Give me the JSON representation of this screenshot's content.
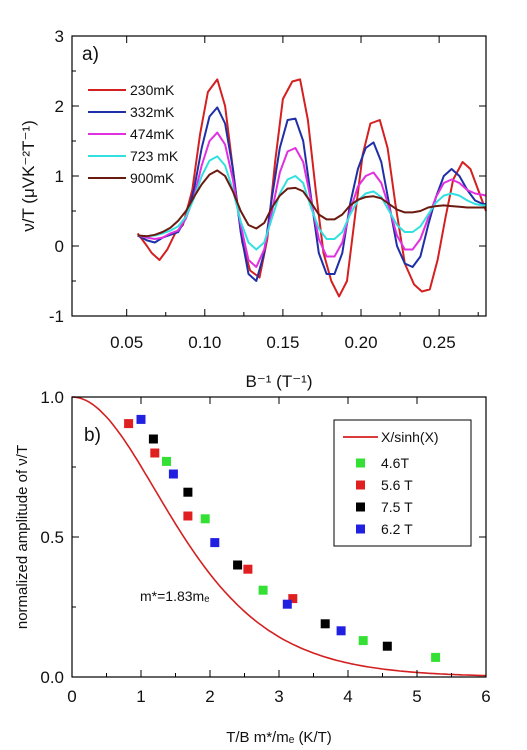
{
  "chart_data": [
    {
      "type": "line",
      "panel_label": "a)",
      "xlabel": "B⁻¹ (T⁻¹)",
      "ylabel": "ν/T (μVK⁻²T⁻¹)",
      "xlim": [
        0.015,
        0.28
      ],
      "ylim": [
        -1,
        3
      ],
      "xticks": [
        "0.05",
        "0.10",
        "0.15",
        "0.20",
        "0.25"
      ],
      "yticks": [
        "-1",
        "0",
        "1",
        "2",
        "3"
      ],
      "legend_position": "top-left",
      "series": [
        {
          "name": "230mK",
          "color": "#d42020",
          "x": [
            0.057,
            0.063,
            0.066,
            0.071,
            0.076,
            0.081,
            0.086,
            0.092,
            0.097,
            0.102,
            0.108,
            0.113,
            0.118,
            0.124,
            0.129,
            0.135,
            0.14,
            0.145,
            0.15,
            0.156,
            0.161,
            0.166,
            0.171,
            0.176,
            0.181,
            0.186,
            0.191,
            0.196,
            0.201,
            0.206,
            0.212,
            0.217,
            0.222,
            0.228,
            0.234,
            0.239,
            0.244,
            0.249,
            0.254,
            0.259,
            0.265,
            0.27,
            0.275,
            0.28
          ],
          "y": [
            0.18,
            0.0,
            -0.1,
            -0.2,
            -0.05,
            0.18,
            0.3,
            0.8,
            1.6,
            2.2,
            2.38,
            2.0,
            1.1,
            0.05,
            -0.35,
            -0.45,
            0.1,
            1.2,
            2.1,
            2.35,
            2.38,
            1.8,
            0.8,
            -0.1,
            -0.5,
            -0.72,
            -0.5,
            0.4,
            1.3,
            1.75,
            1.8,
            1.4,
            0.6,
            -0.25,
            -0.55,
            -0.65,
            -0.62,
            -0.2,
            0.4,
            0.95,
            1.2,
            1.1,
            0.8,
            0.5
          ]
        },
        {
          "name": "332mK",
          "color": "#1f2fa8",
          "x": [
            0.057,
            0.063,
            0.068,
            0.073,
            0.078,
            0.083,
            0.088,
            0.093,
            0.098,
            0.103,
            0.108,
            0.113,
            0.118,
            0.123,
            0.128,
            0.133,
            0.138,
            0.143,
            0.148,
            0.153,
            0.158,
            0.163,
            0.168,
            0.173,
            0.178,
            0.183,
            0.188,
            0.193,
            0.198,
            0.203,
            0.208,
            0.213,
            0.218,
            0.223,
            0.228,
            0.233,
            0.238,
            0.243,
            0.248,
            0.253,
            0.258,
            0.263,
            0.268,
            0.273,
            0.278,
            0.28
          ],
          "y": [
            0.15,
            0.08,
            0.05,
            0.12,
            0.16,
            0.2,
            0.4,
            0.8,
            1.4,
            1.85,
            1.98,
            1.75,
            1.1,
            0.2,
            -0.4,
            -0.5,
            -0.1,
            0.7,
            1.4,
            1.8,
            1.82,
            1.5,
            0.7,
            -0.1,
            -0.4,
            -0.4,
            -0.1,
            0.6,
            1.1,
            1.4,
            1.48,
            1.2,
            0.6,
            0.0,
            -0.25,
            -0.3,
            -0.15,
            0.3,
            0.7,
            1.0,
            1.1,
            1.0,
            0.8,
            0.65,
            0.6,
            0.6
          ]
        },
        {
          "name": "474mK",
          "color": "#e030e0",
          "x": [
            0.057,
            0.063,
            0.068,
            0.073,
            0.078,
            0.083,
            0.088,
            0.093,
            0.098,
            0.103,
            0.108,
            0.113,
            0.118,
            0.123,
            0.128,
            0.133,
            0.138,
            0.143,
            0.148,
            0.153,
            0.158,
            0.163,
            0.168,
            0.173,
            0.178,
            0.183,
            0.188,
            0.193,
            0.198,
            0.203,
            0.208,
            0.213,
            0.218,
            0.223,
            0.228,
            0.233,
            0.238,
            0.243,
            0.248,
            0.253,
            0.258,
            0.263,
            0.268,
            0.273,
            0.278,
            0.28
          ],
          "y": [
            0.15,
            0.12,
            0.1,
            0.12,
            0.18,
            0.22,
            0.4,
            0.7,
            1.15,
            1.5,
            1.62,
            1.45,
            0.95,
            0.3,
            -0.2,
            -0.3,
            -0.05,
            0.5,
            1.05,
            1.35,
            1.4,
            1.2,
            0.65,
            0.1,
            -0.15,
            -0.15,
            0.05,
            0.5,
            0.85,
            1.0,
            1.05,
            0.9,
            0.55,
            0.15,
            -0.05,
            -0.05,
            0.1,
            0.4,
            0.7,
            0.9,
            0.95,
            0.9,
            0.8,
            0.75,
            0.73,
            0.72
          ]
        },
        {
          "name": "723 mK",
          "color": "#33e0e0",
          "x": [
            0.057,
            0.063,
            0.068,
            0.073,
            0.078,
            0.083,
            0.088,
            0.093,
            0.098,
            0.103,
            0.108,
            0.113,
            0.118,
            0.123,
            0.128,
            0.133,
            0.138,
            0.143,
            0.148,
            0.153,
            0.158,
            0.163,
            0.168,
            0.173,
            0.178,
            0.183,
            0.188,
            0.193,
            0.198,
            0.203,
            0.208,
            0.213,
            0.218,
            0.223,
            0.228,
            0.233,
            0.238,
            0.243,
            0.248,
            0.253,
            0.258,
            0.263,
            0.268,
            0.273,
            0.278,
            0.28
          ],
          "y": [
            0.15,
            0.14,
            0.15,
            0.18,
            0.22,
            0.28,
            0.42,
            0.68,
            1.0,
            1.22,
            1.28,
            1.15,
            0.8,
            0.35,
            0.05,
            -0.05,
            0.05,
            0.4,
            0.75,
            0.95,
            1.0,
            0.9,
            0.55,
            0.25,
            0.1,
            0.1,
            0.2,
            0.45,
            0.65,
            0.75,
            0.78,
            0.7,
            0.5,
            0.3,
            0.2,
            0.2,
            0.28,
            0.45,
            0.62,
            0.72,
            0.75,
            0.72,
            0.65,
            0.6,
            0.58,
            0.58
          ]
        },
        {
          "name": "900mK",
          "color": "#6b1a10",
          "x": [
            0.057,
            0.063,
            0.068,
            0.073,
            0.078,
            0.083,
            0.088,
            0.093,
            0.098,
            0.103,
            0.108,
            0.113,
            0.118,
            0.123,
            0.128,
            0.133,
            0.138,
            0.143,
            0.148,
            0.153,
            0.158,
            0.163,
            0.168,
            0.173,
            0.178,
            0.183,
            0.188,
            0.193,
            0.198,
            0.203,
            0.208,
            0.213,
            0.218,
            0.223,
            0.228,
            0.233,
            0.238,
            0.243,
            0.248,
            0.253,
            0.258,
            0.263,
            0.268,
            0.273,
            0.278,
            0.28
          ],
          "y": [
            0.15,
            0.14,
            0.16,
            0.2,
            0.26,
            0.36,
            0.5,
            0.7,
            0.88,
            1.02,
            1.08,
            1.0,
            0.78,
            0.5,
            0.3,
            0.25,
            0.33,
            0.55,
            0.72,
            0.82,
            0.83,
            0.78,
            0.62,
            0.45,
            0.38,
            0.38,
            0.45,
            0.58,
            0.66,
            0.7,
            0.71,
            0.68,
            0.6,
            0.52,
            0.48,
            0.48,
            0.5,
            0.55,
            0.57,
            0.58,
            0.57,
            0.56,
            0.55,
            0.55,
            0.55,
            0.55
          ]
        }
      ]
    },
    {
      "type": "scatter",
      "panel_label": "b)",
      "xlabel": "T/B  m*/mₑ (K/T)",
      "ylabel": "normalized amplitude of ν/T",
      "xlim": [
        0,
        6
      ],
      "ylim": [
        0,
        1
      ],
      "xticks": [
        "0",
        "1",
        "2",
        "3",
        "4",
        "5",
        "6"
      ],
      "yticks": [
        "0.0",
        "0.5",
        "1.0"
      ],
      "legend_position": "top-right",
      "annotation": "m*=1.83mₑ",
      "fit": {
        "name": "X/sinh(X)",
        "color": "#d42020",
        "kT_over_B": 1.3435
      },
      "series": [
        {
          "name": "4.6T",
          "color": "#33e033",
          "x": [
            1.37,
            1.93,
            2.77,
            4.22,
            5.27
          ],
          "y": [
            0.77,
            0.565,
            0.31,
            0.13,
            0.07
          ]
        },
        {
          "name": "5.6 T",
          "color": "#e02020",
          "x": [
            0.82,
            1.2,
            1.68,
            2.55,
            3.2
          ],
          "y": [
            0.905,
            0.8,
            0.575,
            0.385,
            0.28
          ]
        },
        {
          "name": "7.5 T",
          "color": "#000000",
          "x": [
            1.18,
            1.68,
            2.4,
            3.67,
            4.57
          ],
          "y": [
            0.85,
            0.66,
            0.4,
            0.19,
            0.11
          ]
        },
        {
          "name": "6.2 T",
          "color": "#2020e0",
          "x": [
            1.0,
            1.47,
            2.07,
            3.12,
            3.9
          ],
          "y": [
            0.92,
            0.725,
            0.48,
            0.26,
            0.165
          ]
        }
      ]
    }
  ]
}
